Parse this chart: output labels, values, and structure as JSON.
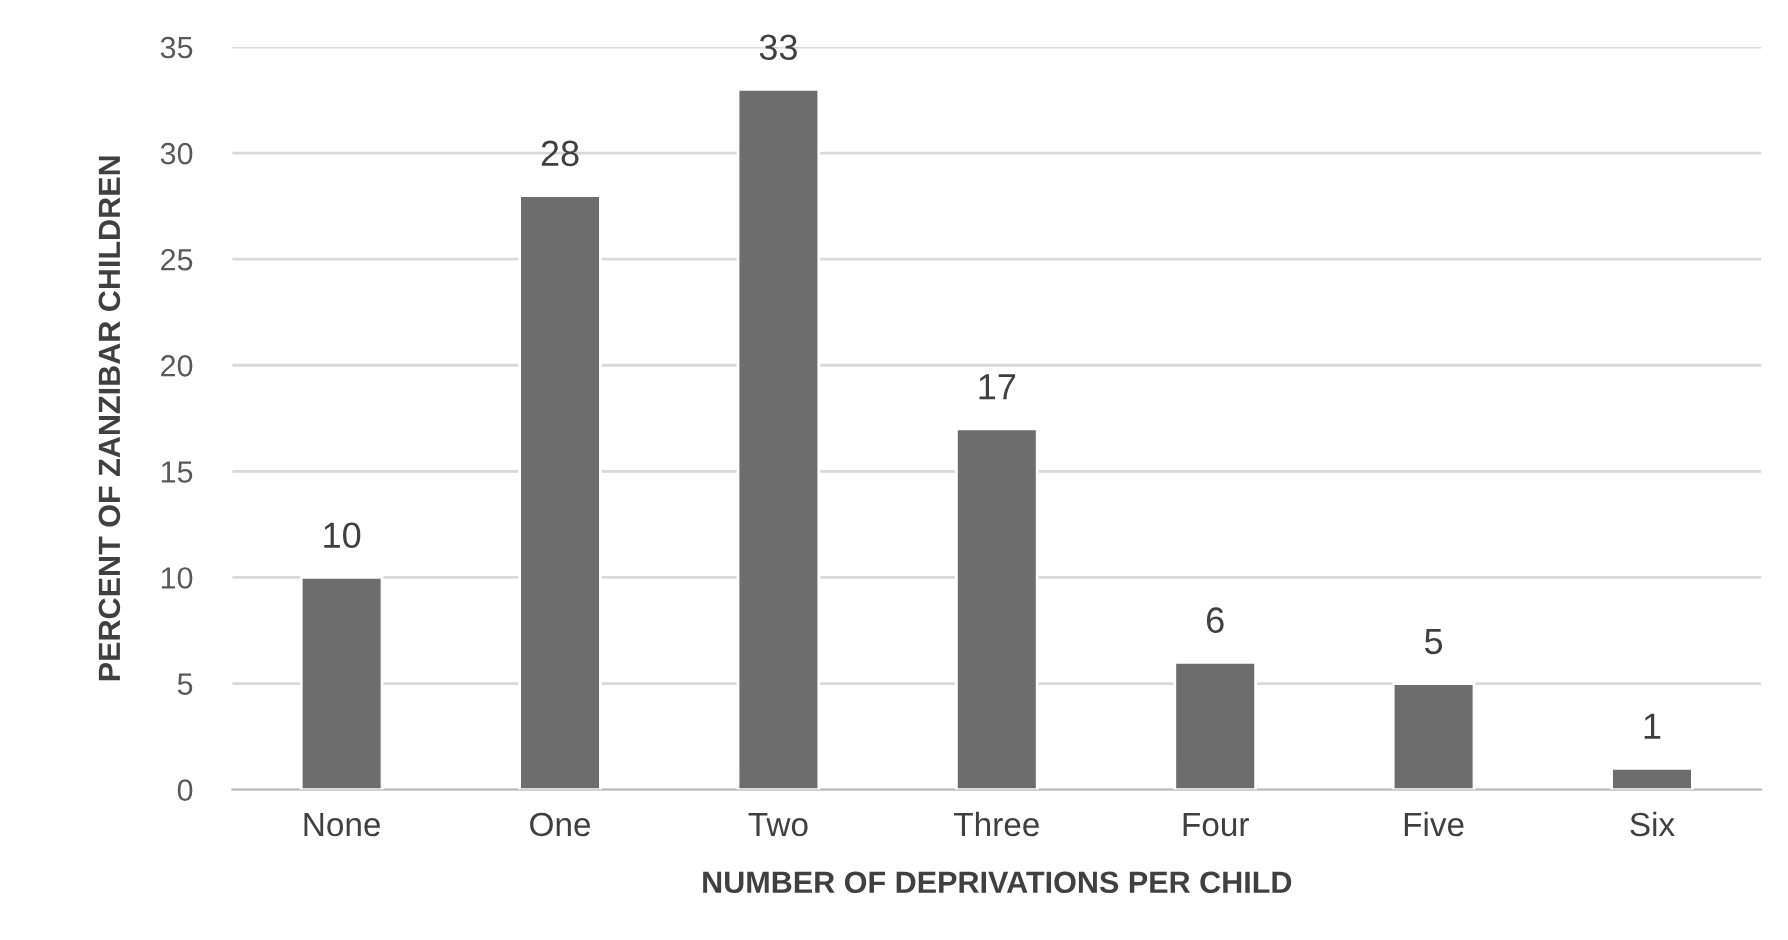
{
  "chart_data": {
    "type": "bar",
    "categories": [
      "None",
      "One",
      "Two",
      "Three",
      "Four",
      "Five",
      "Six"
    ],
    "values": [
      10,
      28,
      33,
      17,
      6,
      5,
      1
    ],
    "color": "#6d6d6d",
    "xlabel": "NUMBER OF DEPRIVATIONS PER CHILD",
    "ylabel": "PERCENT OF ZANZIBAR CHILDREN",
    "ylim": [
      0,
      35
    ],
    "yticks": [
      0,
      5,
      10,
      15,
      20,
      25,
      30,
      35
    ],
    "grid": "y",
    "data_labels": true
  }
}
